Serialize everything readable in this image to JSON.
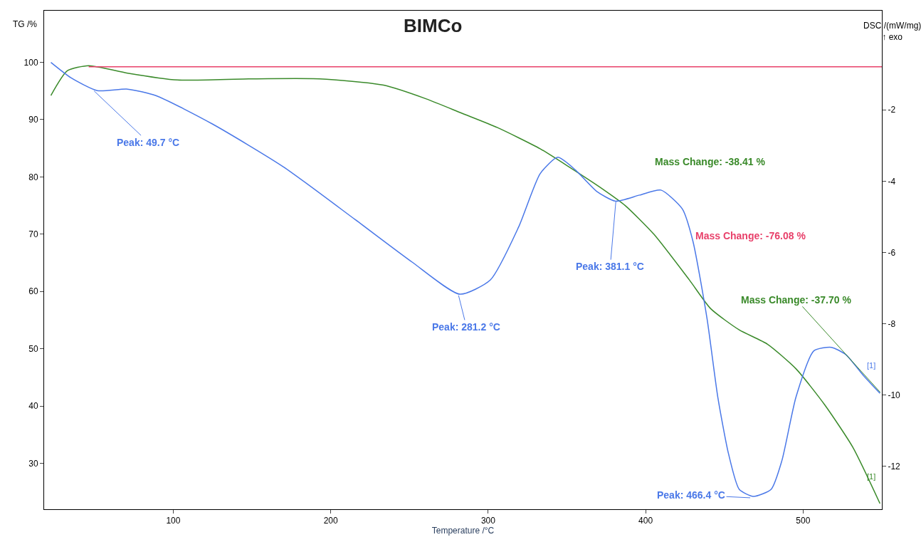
{
  "chart_data": {
    "type": "line",
    "title": "BIMCo",
    "xlabel": "Temperature /°C",
    "ylabel": "TG /%",
    "y2label": "DSC /(mW/mg)\n↑ exo",
    "xlim": [
      18,
      550
    ],
    "xticks": [
      100,
      200,
      300,
      400,
      500
    ],
    "ylim": [
      22,
      109
    ],
    "yticks": [
      30,
      40,
      50,
      60,
      70,
      80,
      90,
      100
    ],
    "y2lim": [
      -13.2,
      0.78
    ],
    "y2ticks": [
      -2,
      -4,
      -6,
      -8,
      -10,
      -12
    ],
    "legend": false,
    "marker": "none",
    "line_style": "solid",
    "series": [
      {
        "color": "#3a8a2a",
        "x": [
          22.3,
          32.7,
          46.3,
          71,
          102.7,
          147.9,
          193,
          233.6,
          260.7,
          283.3,
          305.9,
          333,
          351,
          373.6,
          387,
          405.2,
          427.8,
          441.3,
          459.4,
          477.4,
          495.5,
          513.5,
          531.6,
          548.8
        ],
        "values": [
          94.2,
          98.5,
          99.4,
          98.1,
          96.9,
          97.1,
          97.1,
          96.0,
          93.6,
          91.1,
          88.6,
          84.9,
          81.8,
          77.7,
          75.0,
          70.0,
          62.0,
          57.0,
          53.3,
          50.8,
          46.5,
          40.3,
          32.8,
          23.0
        ]
      },
      {
        "color": "#e8406a",
        "x": [
          46.3,
          550
        ],
        "values": [
          99.2,
          99.2
        ]
      },
      {
        "color": "#4a78e8",
        "axis": "y2",
        "x": [
          22.3,
          35,
          51.7,
          71,
          89,
          125,
          170,
          215.6,
          251.7,
          282,
          301.4,
          319.4,
          333,
          344.2,
          355.5,
          369,
          380.8,
          396.2,
          409.7,
          423.3,
          430,
          439,
          445.8,
          452.6,
          459.4,
          468.4,
          479.7,
          486.5,
          495.5,
          506.8,
          518,
          527,
          538.5,
          548.8
        ],
        "values": [
          -0.67,
          -1.1,
          -1.46,
          -1.42,
          -1.6,
          -2.4,
          -3.6,
          -5.08,
          -6.27,
          -7.17,
          -6.77,
          -5.28,
          -3.79,
          -3.33,
          -3.69,
          -4.29,
          -4.56,
          -4.39,
          -4.25,
          -4.78,
          -5.68,
          -7.86,
          -10.05,
          -11.64,
          -12.64,
          -12.84,
          -12.64,
          -11.84,
          -10.05,
          -8.76,
          -8.66,
          -8.86,
          -9.46,
          -9.95
        ]
      }
    ],
    "annotations": [
      {
        "text": "Peak: 49.7 °C",
        "x": 49.7,
        "y": 95.0
      },
      {
        "text": "Peak: 281.2 °C",
        "x": 281.2,
        "y": 59.3
      },
      {
        "text": "Peak: 381.1 °C",
        "x": 381.1,
        "y": 75.8
      },
      {
        "text": "Peak: 466.4 °C",
        "x": 466.4,
        "y": 24.0
      },
      "Mass Change: -38.41 %",
      "Mass Change: -76.08 %",
      {
        "text": "Mass Change: -37.70 %",
        "x": 549,
        "y": 42.4
      },
      "[1]",
      "[1]"
    ]
  }
}
